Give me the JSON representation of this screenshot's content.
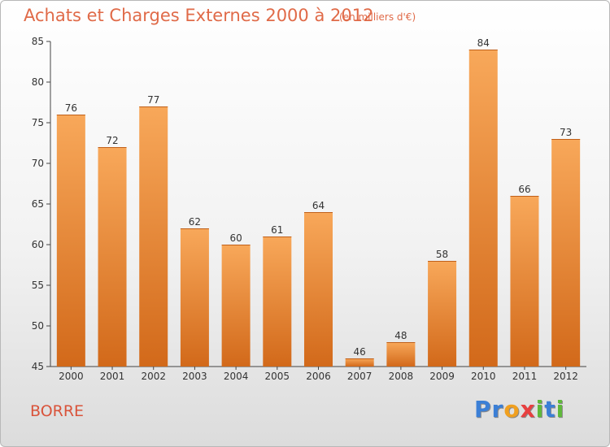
{
  "title": "Achats et Charges Externes 2000 à 2012",
  "subtitle": "(en milliers d'€)",
  "commune": "BORRE",
  "logo": {
    "letters": [
      "P",
      "r",
      "o",
      "x",
      "i",
      "t",
      "i"
    ],
    "colors": [
      "#3b7fd6",
      "#3b7fd6",
      "#f0a020",
      "#e84040",
      "#5fb93a",
      "#3b7fd6",
      "#5fb93a"
    ]
  },
  "colors": {
    "bar_light": "#f8a85a",
    "bar_dark": "#d2691a",
    "axis": "#444444",
    "grid": "#cccccc",
    "text": "#333333"
  },
  "chart_data": {
    "type": "bar",
    "categories": [
      "2000",
      "2001",
      "2002",
      "2003",
      "2004",
      "2005",
      "2006",
      "2007",
      "2008",
      "2009",
      "2010",
      "2011",
      "2012"
    ],
    "values": [
      76,
      72,
      77,
      62,
      60,
      61,
      64,
      46,
      48,
      58,
      84,
      66,
      73
    ],
    "ylim": [
      45,
      85
    ],
    "yticks": [
      45,
      50,
      55,
      60,
      65,
      70,
      75,
      80,
      85
    ],
    "title": "Achats et Charges Externes 2000 à 2012",
    "xlabel": "",
    "ylabel": "",
    "data_labels": true,
    "grid": false
  }
}
